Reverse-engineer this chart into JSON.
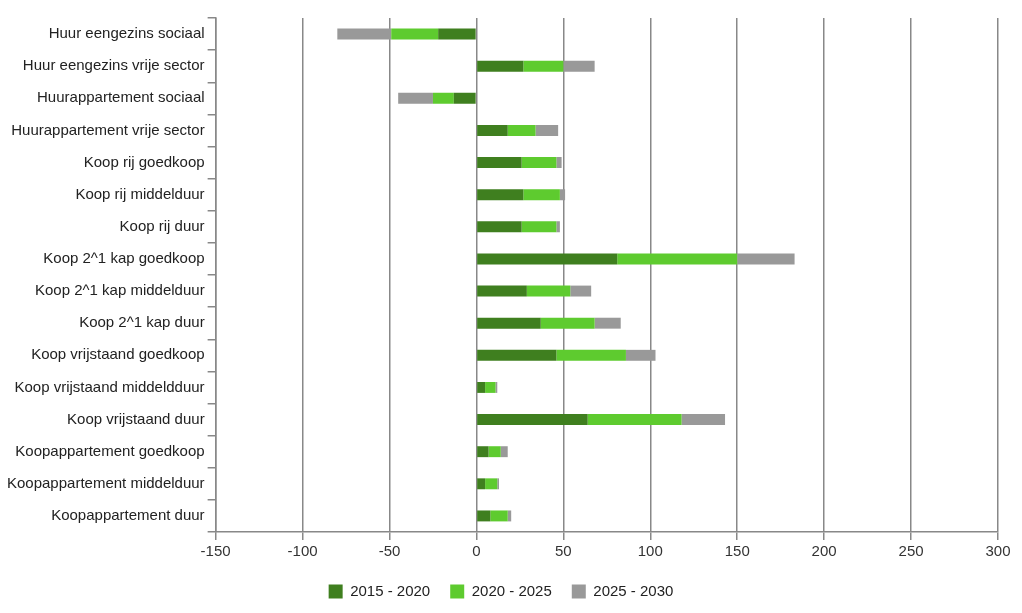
{
  "chart_data": {
    "type": "bar",
    "orientation": "horizontal",
    "stacked": true,
    "categories": [
      "Huur eengezins sociaal",
      "Huur eengezins vrije sector",
      "Huurappartement sociaal",
      "Huurappartement vrije sector",
      "Koop rij goedkoop",
      "Koop rij middelduur",
      "Koop rij duur",
      "Koop 2^1 kap goedkoop",
      "Koop 2^1 kap middelduur",
      "Koop 2^1 kap duur",
      "Koop vrijstaand goedkoop",
      "Koop vrijstaand middeldduur",
      "Koop vrijstaand duur",
      "Koopappartement goedkoop",
      "Koopappartement middelduur",
      "Koopappartement duur"
    ],
    "series": [
      {
        "name": "2015 - 2020",
        "color": "#3f7f1f",
        "values": [
          -22,
          27,
          -13,
          18,
          26,
          27,
          26,
          81,
          29,
          37,
          46,
          5,
          64,
          7,
          5,
          8
        ]
      },
      {
        "name": "2020 - 2025",
        "color": "#5ecb2f",
        "values": [
          -27,
          23,
          -12,
          16,
          20,
          21,
          20,
          69,
          25,
          31,
          40,
          6,
          54,
          7,
          7,
          10
        ]
      },
      {
        "name": "2025 - 2030",
        "color": "#999999",
        "values": [
          -31,
          18,
          -20,
          13,
          3,
          3,
          2,
          33,
          12,
          15,
          17,
          1,
          25,
          4,
          1,
          2
        ]
      }
    ],
    "xlim": [
      -150,
      300
    ],
    "xticks": [
      -150,
      -100,
      -50,
      0,
      50,
      100,
      150,
      200,
      250,
      300
    ],
    "grid": "x",
    "legend": "bottom"
  }
}
